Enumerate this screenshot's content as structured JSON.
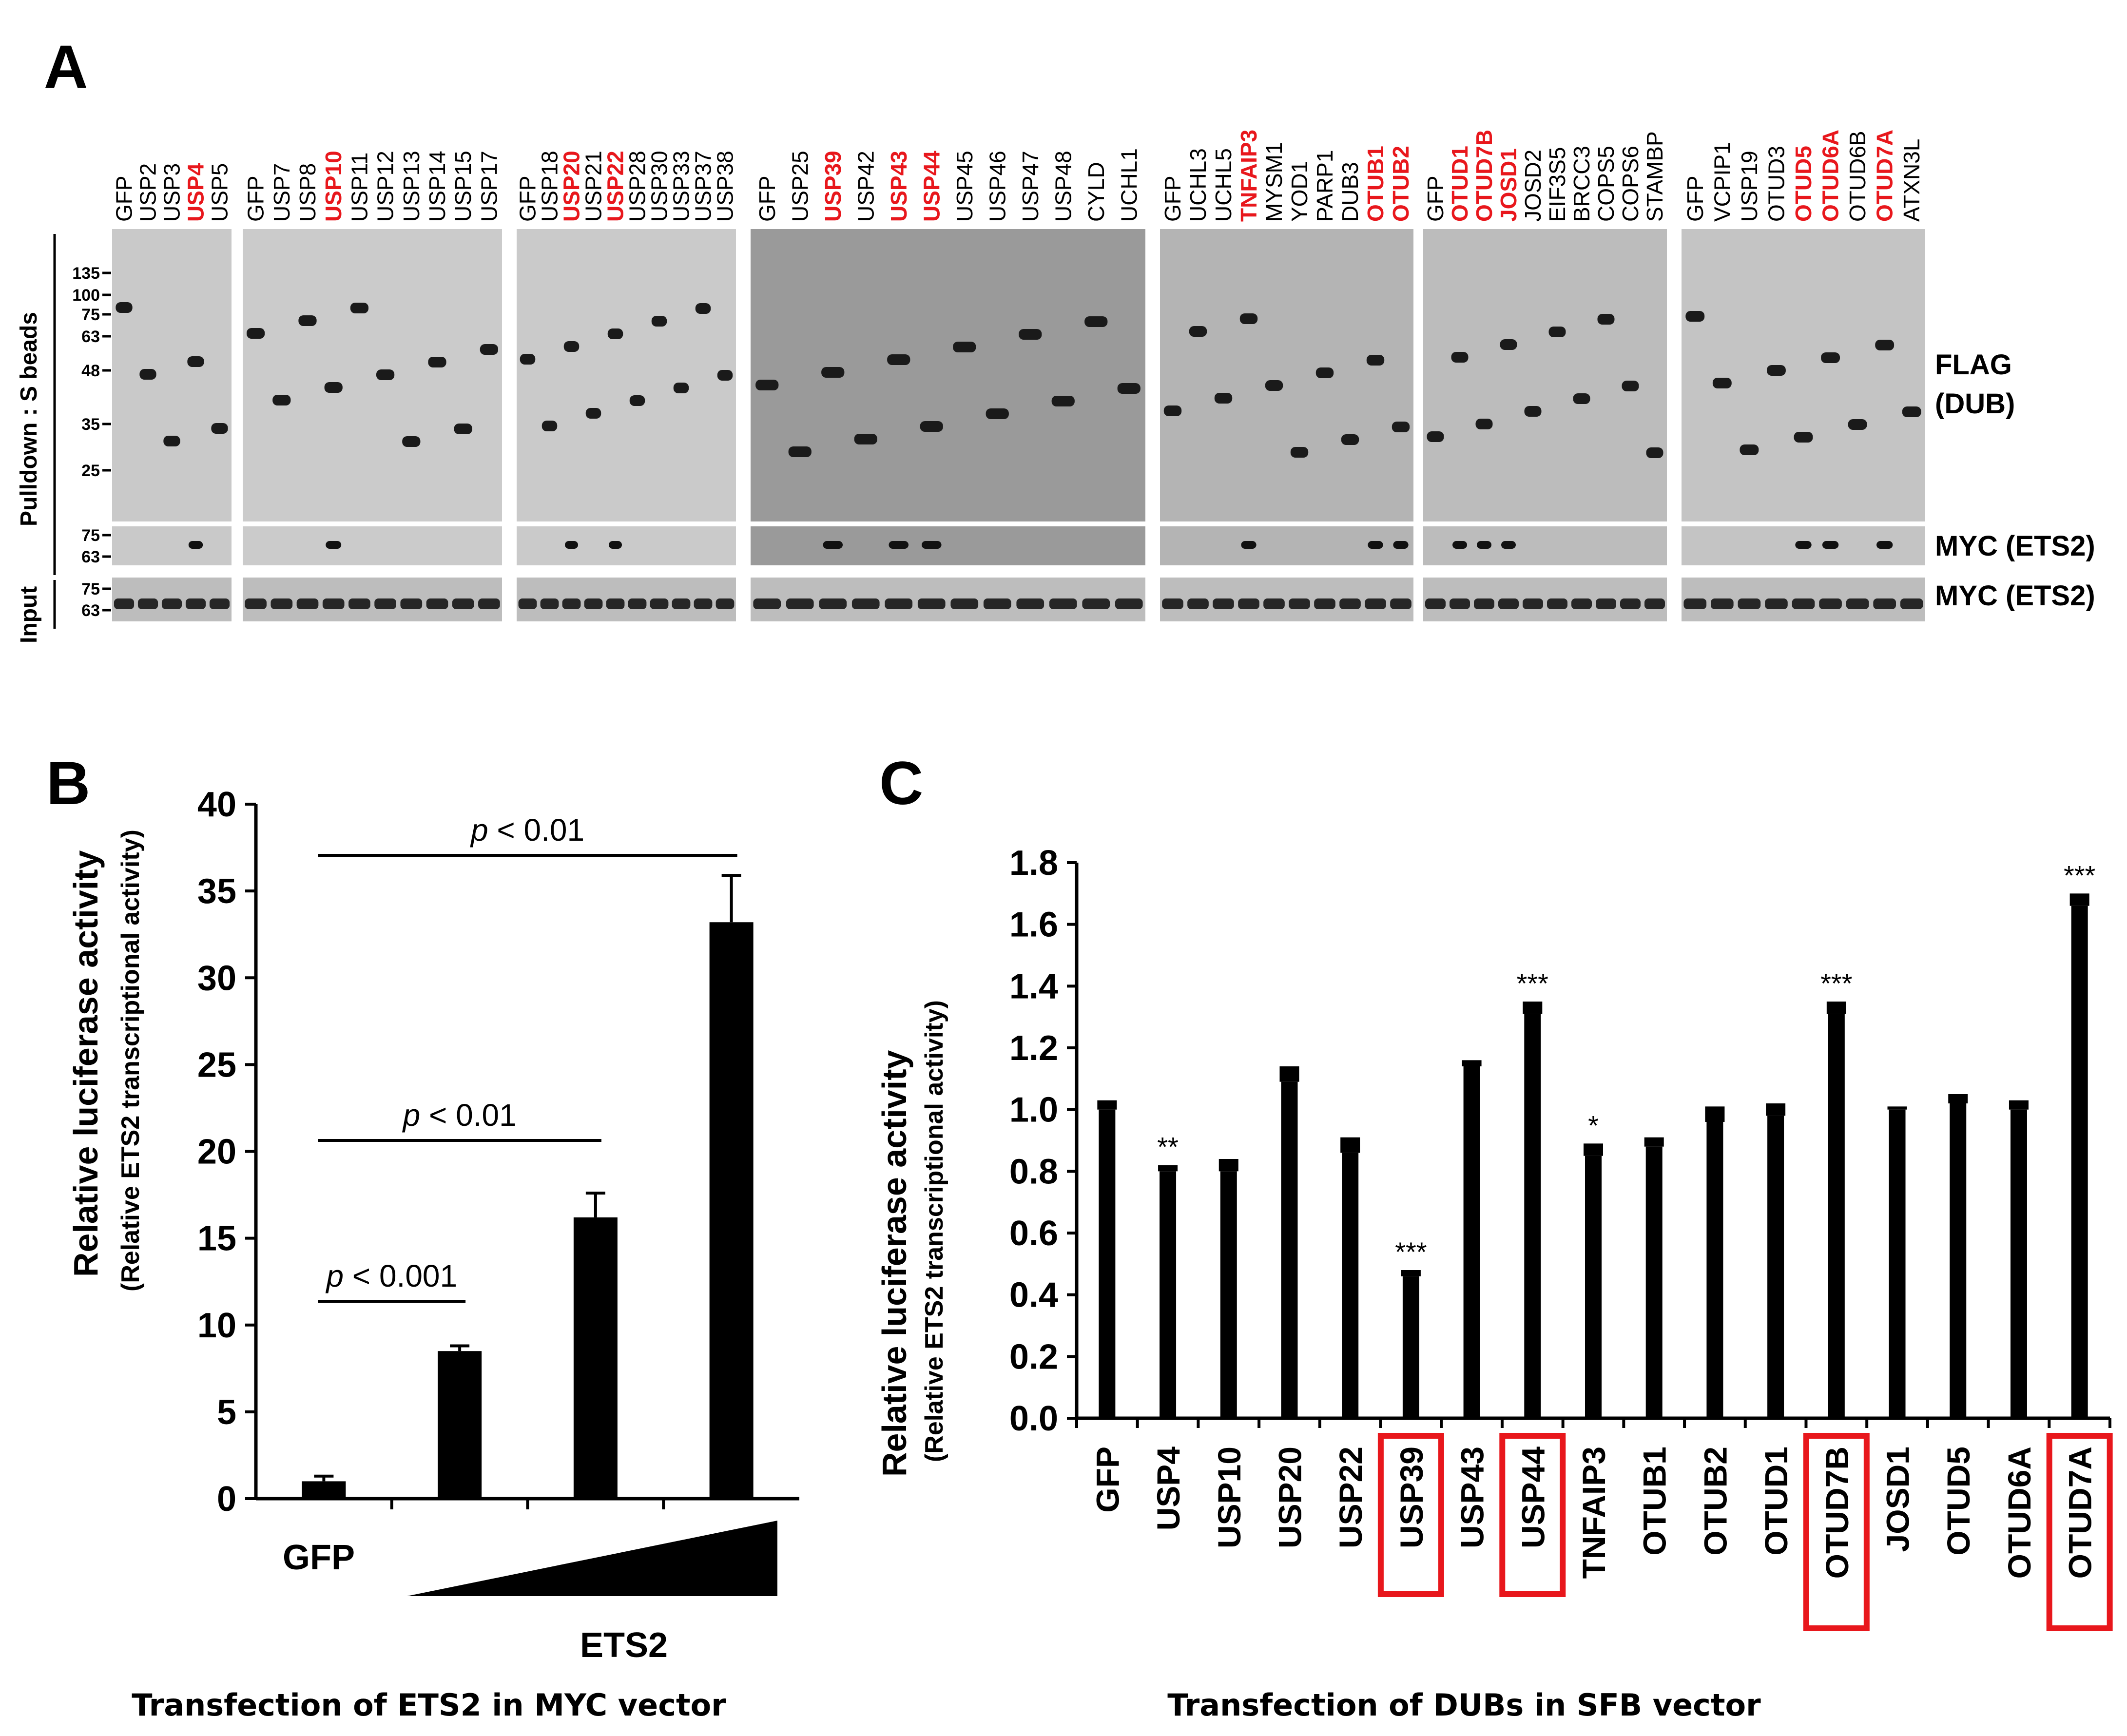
{
  "colors": {
    "highlight": "#e8171c",
    "ink": "#000000"
  },
  "panel_a": {
    "letter": "A",
    "side_labels": {
      "pulldown": "Pulldown : S beads",
      "input": "Input"
    },
    "mw_markers_main": [
      "135",
      "100",
      "75",
      "63",
      "48",
      "35",
      "25"
    ],
    "mw_markers_myc": [
      "75",
      "63"
    ],
    "mw_markers_input": [
      "75",
      "63"
    ],
    "right_labels": {
      "flag": "FLAG",
      "dub": "(DUB)",
      "myc_pulldown": "MYC (ETS2)",
      "myc_input": "MYC (ETS2)"
    },
    "groups": [
      {
        "lanes": [
          {
            "name": "GFP"
          },
          {
            "name": "USP2"
          },
          {
            "name": "USP3"
          },
          {
            "name": "USP4",
            "hl": true
          },
          {
            "name": "USP5"
          }
        ]
      },
      {
        "lanes": [
          {
            "name": "GFP"
          },
          {
            "name": "USP7"
          },
          {
            "name": "USP8"
          },
          {
            "name": "USP10",
            "hl": true
          },
          {
            "name": "USP11"
          },
          {
            "name": "USP12"
          },
          {
            "name": "USP13"
          },
          {
            "name": "USP14"
          },
          {
            "name": "USP15"
          },
          {
            "name": "USP17"
          }
        ]
      },
      {
        "lanes": [
          {
            "name": "GFP"
          },
          {
            "name": "USP18"
          },
          {
            "name": "USP20",
            "hl": true
          },
          {
            "name": "USP21"
          },
          {
            "name": "USP22",
            "hl": true
          },
          {
            "name": "USP28"
          },
          {
            "name": "USP30"
          },
          {
            "name": "USP33"
          },
          {
            "name": "USP37"
          },
          {
            "name": "USP38"
          }
        ]
      },
      {
        "lanes": [
          {
            "name": "GFP"
          },
          {
            "name": "USP25"
          },
          {
            "name": "USP39",
            "hl": true
          },
          {
            "name": "USP42"
          },
          {
            "name": "USP43",
            "hl": true
          },
          {
            "name": "USP44",
            "hl": true
          },
          {
            "name": "USP45"
          },
          {
            "name": "USP46"
          },
          {
            "name": "USP47"
          },
          {
            "name": "USP48"
          },
          {
            "name": "CYLD"
          },
          {
            "name": "UCHL1"
          }
        ]
      },
      {
        "lanes": [
          {
            "name": "GFP"
          },
          {
            "name": "UCHL3"
          },
          {
            "name": "UCHL5"
          },
          {
            "name": "TNFAIP3",
            "hl": true
          },
          {
            "name": "MYSM1"
          },
          {
            "name": "YOD1"
          },
          {
            "name": "PARP1"
          },
          {
            "name": "DUB3"
          },
          {
            "name": "OTUB1",
            "hl": true
          },
          {
            "name": "OTUB2",
            "hl": true
          }
        ]
      },
      {
        "lanes": [
          {
            "name": "GFP"
          },
          {
            "name": "OTUD1",
            "hl": true
          },
          {
            "name": "OTUD7B",
            "hl": true
          },
          {
            "name": "JOSD1",
            "hl": true
          },
          {
            "name": "JOSD2"
          },
          {
            "name": "EIF3S5"
          },
          {
            "name": "BRCC3"
          },
          {
            "name": "COPS5"
          },
          {
            "name": "COPS6"
          },
          {
            "name": "STAMBP"
          }
        ]
      },
      {
        "lanes": [
          {
            "name": "GFP"
          },
          {
            "name": "VCPIP1"
          },
          {
            "name": "USP19"
          },
          {
            "name": "OTUD3"
          },
          {
            "name": "OTUD5",
            "hl": true
          },
          {
            "name": "OTUD6A",
            "hl": true
          },
          {
            "name": "OTUD6B"
          },
          {
            "name": "OTUD7A",
            "hl": true
          },
          {
            "name": "ATXN3L"
          }
        ]
      }
    ]
  },
  "panel_b": {
    "letter": "B",
    "ylabel": "Relative luciferase activity",
    "ylabel2": "(Relative ETS2 transcriptional activity)",
    "gfp_label": "GFP",
    "ets2_label": "ETS2",
    "caption": "Transfection of ETS2 in MYC vector",
    "p_low": "p",
    "p_low_rest": " < 0.001",
    "p_mid": "p",
    "p_mid_rest": " < 0.01",
    "p_high": "p",
    "p_high_rest": " < 0.01"
  },
  "panel_c": {
    "letter": "C",
    "ylabel": "Relative luciferase activity",
    "ylabel2": "(Relative ETS2 transcriptional activity)",
    "caption": "Transfection of DUBs in SFB vector"
  },
  "chart_data": [
    {
      "type": "bar",
      "panel": "B",
      "categories": [
        "GFP",
        "ETS2 low",
        "ETS2 mid",
        "ETS2 high"
      ],
      "values": [
        1.0,
        8.5,
        16.2,
        33.2
      ],
      "errors": [
        0.3,
        0.3,
        1.4,
        2.7
      ],
      "ylim": [
        0,
        40
      ],
      "yticks": [
        0,
        5,
        10,
        15,
        20,
        25,
        30,
        35,
        40
      ],
      "ylabel": "Relative luciferase activity",
      "xlabel": "Transfection of ETS2 in MYC vector",
      "comparisons": [
        {
          "from": 0,
          "to": 1,
          "label": "p < 0.001"
        },
        {
          "from": 0,
          "to": 2,
          "label": "p < 0.01"
        },
        {
          "from": 0,
          "to": 3,
          "label": "p < 0.01"
        }
      ]
    },
    {
      "type": "bar",
      "panel": "C",
      "categories": [
        "GFP",
        "USP4",
        "USP10",
        "USP20",
        "USP22",
        "USP39",
        "USP43",
        "USP44",
        "TNFAIP3",
        "OTUB1",
        "OTUB2",
        "OTUD1",
        "OTUD7B",
        "JOSD1",
        "OTUD5",
        "OTUD6A",
        "OTUD7A"
      ],
      "values": [
        1.0,
        0.8,
        0.8,
        1.09,
        0.86,
        0.46,
        1.14,
        1.31,
        0.85,
        0.88,
        0.96,
        0.98,
        1.31,
        1.0,
        1.02,
        1.0,
        1.66
      ],
      "errors": [
        0.03,
        0.02,
        0.04,
        0.05,
        0.05,
        0.02,
        0.02,
        0.04,
        0.04,
        0.03,
        0.05,
        0.04,
        0.04,
        0.01,
        0.03,
        0.03,
        0.04
      ],
      "significance": [
        "",
        "**",
        "",
        "",
        "",
        "***",
        "",
        "***",
        "*",
        "",
        "",
        "",
        "***",
        "",
        "",
        "",
        "***"
      ],
      "boxed": [
        "USP39",
        "USP44",
        "OTUD7B",
        "OTUD7A"
      ],
      "ylim": [
        0,
        1.8
      ],
      "yticks": [
        "0.0",
        "0.2",
        "0.4",
        "0.6",
        "0.8",
        "1.0",
        "1.2",
        "1.4",
        "1.6",
        "1.8"
      ],
      "ylabel": "Relative luciferase activity",
      "xlabel": "Transfection of DUBs in SFB vector"
    }
  ]
}
